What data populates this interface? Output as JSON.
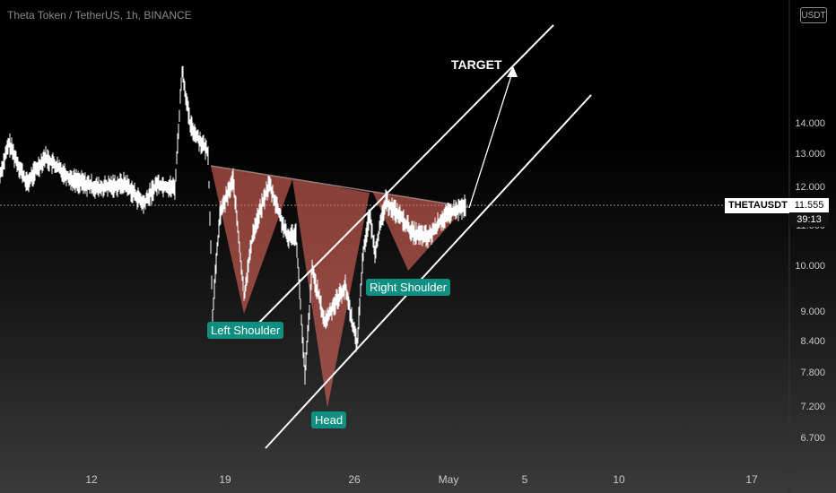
{
  "header": {
    "title": "Theta Token / TetherUS, 1h, BINANCE",
    "currency_button": "USDT"
  },
  "y_axis": {
    "labels": [
      "14.000",
      "13.000",
      "12.000",
      "11.000",
      "10.000",
      "9.000",
      "8.400",
      "7.800",
      "7.200",
      "6.700"
    ]
  },
  "x_axis": {
    "labels": [
      "12",
      "19",
      "26",
      "May",
      "5",
      "10",
      "17"
    ]
  },
  "price_marker": {
    "symbol": "THETAUSDT",
    "price": "11.555",
    "countdown": "39:13"
  },
  "annotations": {
    "left_shoulder": "Left Shoulder",
    "head": "Head",
    "right_shoulder": "Right Shoulder",
    "target": "TARGET"
  },
  "colors": {
    "pattern_fill": "#e0685c",
    "label_bg": "#0e8f82",
    "line": "#ffffff"
  }
}
